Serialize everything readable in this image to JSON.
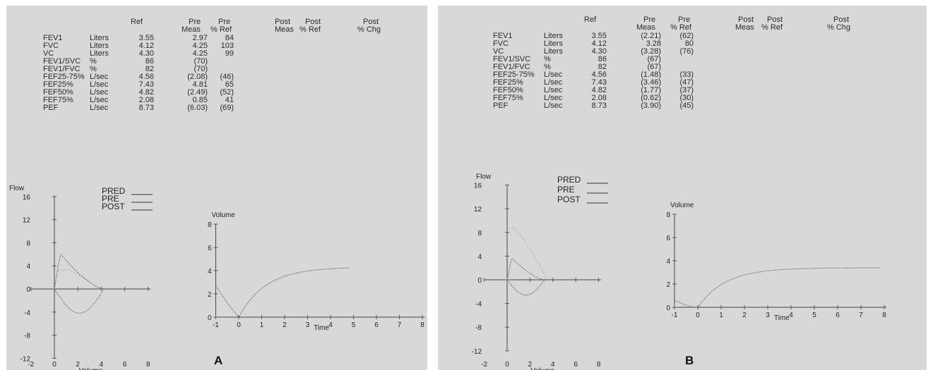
{
  "panels": [
    {
      "letter": "A",
      "header": {
        "ref": "Ref",
        "pre1": "Pre",
        "pre2": "Pre",
        "pre_meas": "Meas",
        "pre_ref": "% Ref",
        "post1": "Post",
        "post2": "Post",
        "post3": "Post",
        "post_meas": "Meas",
        "post_ref": "% Ref",
        "post_chg": "% Chg"
      },
      "rows": [
        {
          "name": "FEV1",
          "unit": "Liters",
          "ref": "3.55",
          "meas": "2.97",
          "pct": "84"
        },
        {
          "name": "FVC",
          "unit": "Liters",
          "ref": "4.12",
          "meas": "4.25",
          "pct": "103"
        },
        {
          "name": "VC",
          "unit": "Liters",
          "ref": "4.30",
          "meas": "4.25",
          "pct": "99"
        },
        {
          "name": "FEV1/SVC",
          "unit": "%",
          "ref": "86",
          "meas": "(70)",
          "pct": ""
        },
        {
          "name": "FEV1/FVC",
          "unit": "%",
          "ref": "82",
          "meas": "(70)",
          "pct": ""
        },
        {
          "name": "FEF25-75%",
          "unit": "L/sec",
          "ref": "4.56",
          "meas": "(2.08)",
          "pct": "(46)"
        },
        {
          "name": "FEF25%",
          "unit": "L/sec",
          "ref": "7.43",
          "meas": "4.81",
          "pct": "65"
        },
        {
          "name": "FEF50%",
          "unit": "L/sec",
          "ref": "4.82",
          "meas": "(2.49)",
          "pct": "(52)"
        },
        {
          "name": "FEF75%",
          "unit": "L/sec",
          "ref": "2.08",
          "meas": "0.85",
          "pct": "41"
        },
        {
          "name": "PEF",
          "unit": "L/sec",
          "ref": "8.73",
          "meas": "(6.03)",
          "pct": "(69)"
        }
      ],
      "legend": [
        "PRED",
        "PRE",
        "POST"
      ],
      "flow_plot": {
        "ylabel": "Flow",
        "xlabel": "Volume",
        "yticks": [
          "16",
          "12",
          "8",
          "4",
          "0",
          "-4",
          "-8",
          "-12"
        ],
        "xticks": [
          "-2",
          "0",
          "2",
          "4",
          "6",
          "8"
        ]
      },
      "vol_plot": {
        "ylabel": "Volume",
        "xlabel": "Time",
        "yticks": [
          "8",
          "6",
          "4",
          "2",
          "0"
        ],
        "xticks": [
          "-1",
          "0",
          "1",
          "2",
          "3",
          "4",
          "5",
          "6",
          "7",
          "8"
        ]
      }
    },
    {
      "letter": "B",
      "header": {
        "ref": "Ref",
        "pre1": "Pre",
        "pre2": "Pre",
        "pre_meas": "Meas",
        "pre_ref": "% Ref",
        "post1": "Post",
        "post2": "Post",
        "post3": "Post",
        "post_meas": "Meas",
        "post_ref": "% Ref",
        "post_chg": "% Chg"
      },
      "rows": [
        {
          "name": "FEV1",
          "unit": "Liters",
          "ref": "3.55",
          "meas": "(2.21)",
          "pct": "(62)"
        },
        {
          "name": "FVC",
          "unit": "Liters",
          "ref": "4.12",
          "meas": "3.28",
          "pct": "80"
        },
        {
          "name": "VC",
          "unit": "Liters",
          "ref": "4.30",
          "meas": "(3.28)",
          "pct": "(76)"
        },
        {
          "name": "FEV1/SVC",
          "unit": "%",
          "ref": "86",
          "meas": "(67)",
          "pct": ""
        },
        {
          "name": "FEV1/FVC",
          "unit": "%",
          "ref": "82",
          "meas": "(67)",
          "pct": ""
        },
        {
          "name": "FEF25-75%",
          "unit": "L/sec",
          "ref": "4.56",
          "meas": "(1.48)",
          "pct": "(33)"
        },
        {
          "name": "FEF25%",
          "unit": "L/sec",
          "ref": "7.43",
          "meas": "(3.46)",
          "pct": "(47)"
        },
        {
          "name": "FEF50%",
          "unit": "L/sec",
          "ref": "4.82",
          "meas": "(1.77)",
          "pct": "(37)"
        },
        {
          "name": "FEF75%",
          "unit": "L/sec",
          "ref": "2.08",
          "meas": "(0.62)",
          "pct": "(30)"
        },
        {
          "name": "PEF",
          "unit": "L/sec",
          "ref": "8.73",
          "meas": "(3.90)",
          "pct": "(45)"
        }
      ],
      "legend": [
        "PRED",
        "PRE",
        "POST"
      ],
      "flow_plot": {
        "ylabel": "Flow",
        "xlabel": "Volume",
        "yticks": [
          "16",
          "12",
          "8",
          "4",
          "0",
          "-4",
          "-8",
          "-12"
        ],
        "xticks": [
          "-2",
          "0",
          "2",
          "4",
          "6",
          "8"
        ]
      },
      "vol_plot": {
        "ylabel": "Volume",
        "xlabel": "Time",
        "yticks": [
          "8",
          "6",
          "4",
          "2",
          "0"
        ],
        "xticks": [
          "-1",
          "0",
          "1",
          "2",
          "3",
          "4",
          "5",
          "6",
          "7",
          "8"
        ]
      }
    }
  ]
}
